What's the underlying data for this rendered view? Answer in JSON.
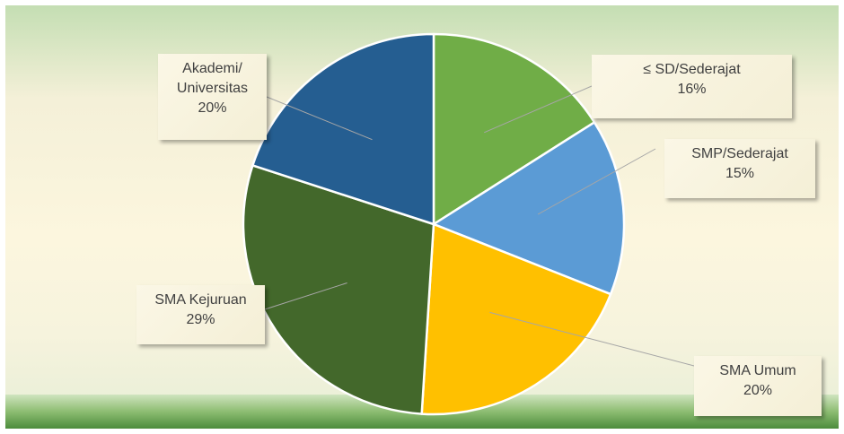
{
  "chart_data": {
    "type": "pie",
    "title": "",
    "slices": [
      {
        "label": "≤ SD/Sederajat",
        "value": 16,
        "value_label": "16%",
        "color": "#70ad47"
      },
      {
        "label": "SMP/Sederajat",
        "value": 15,
        "value_label": "15%",
        "color": "#5b9bd5"
      },
      {
        "label": "SMA Umum",
        "value": 20,
        "value_label": "20%",
        "color": "#ffc000"
      },
      {
        "label": "SMA Kejuruan",
        "value": 29,
        "value_label": "29%",
        "color": "#43682b"
      },
      {
        "label": "Akademi/ Universitas",
        "value": 20,
        "value_label": "20%",
        "color": "#255e91"
      }
    ],
    "start_angle": "12 o'clock",
    "direction": "clockwise",
    "legend": "none",
    "data_labels": "callouts"
  },
  "background": {
    "top_color": "#c4deb3",
    "middle_color": "#fcf6de",
    "bottom_color": "#5a9a47"
  }
}
